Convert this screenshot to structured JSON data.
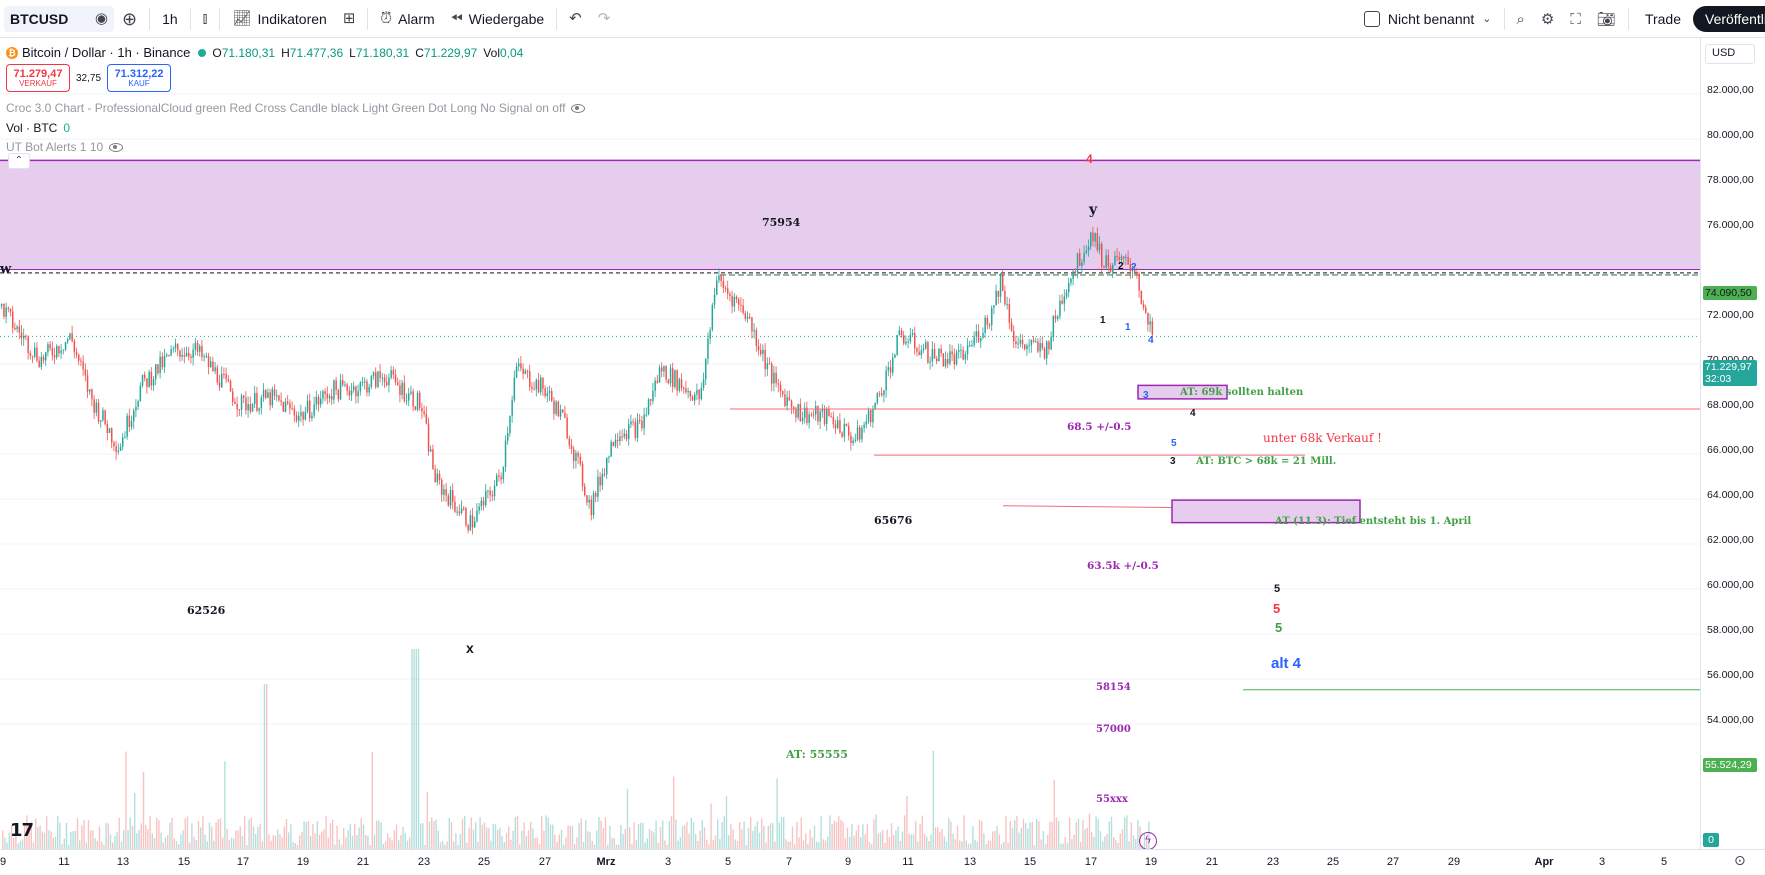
{
  "toolbar": {
    "symbol": "BTCUSD",
    "interval": "1h",
    "indicators_label": "Indikatoren",
    "alarm_label": "Alarm",
    "replay_label": "Wiedergabe",
    "layout_name": "Nicht benannt",
    "trade_label": "Trade",
    "publish_label": "Veröffentli",
    "icons": [
      "search-icon",
      "plus-circle-icon",
      "candle-type-icon",
      "indicators-icon",
      "templates-icon",
      "alarm-clock-icon",
      "replay-icon",
      "undo-icon",
      "redo-icon",
      "quick-search-icon",
      "settings-gear-icon",
      "fullscreen-icon",
      "camera-icon"
    ]
  },
  "legend": {
    "title": "Bitcoin / Dollar · 1h · Binance",
    "open_label": "O",
    "open": "71.180,31",
    "high_label": "H",
    "high": "71.477,36",
    "low_label": "L",
    "low": "71.180,31",
    "close_label": "C",
    "close": "71.229,97",
    "vol_label": "Vol",
    "vol": "0,04",
    "sell_price": "71.279,47",
    "sell_label": "VERKAUF",
    "spread": "32,75",
    "buy_price": "71.312,22",
    "buy_label": "KAUF",
    "indicator_croc": "Croc 3.0 Chart - ProfessionalCloud green Red Cross Candle black Light Green Dot Long No Signal on off",
    "indicator_vol_name": "Vol · BTC",
    "indicator_vol_value": "0",
    "indicator_ut": "UT Bot Alerts 1 10"
  },
  "price_axis": {
    "currency": "USD",
    "ticks": [
      "82.000,00",
      "80.000,00",
      "78.000,00",
      "76.000,00",
      "72.000,00",
      "70.000,00",
      "68.000,00",
      "66.000,00",
      "64.000,00",
      "62.000,00",
      "60.000,00",
      "58.000,00",
      "56.000,00",
      "54.000,00"
    ],
    "tag_line": "74.090,50",
    "tag_current": "71.229,97",
    "tag_countdown": "32:03",
    "tag_green": "55.524,29",
    "tag_volume": "0"
  },
  "time_axis": {
    "labels": [
      "9",
      "11",
      "13",
      "15",
      "17",
      "19",
      "21",
      "23",
      "25",
      "27",
      "Mrz",
      "3",
      "5",
      "7",
      "9",
      "11",
      "13",
      "15",
      "17",
      "19",
      "21",
      "23",
      "25",
      "27",
      "29",
      "Apr",
      "3",
      "5"
    ]
  },
  "annotations": {
    "a_75954": "75954",
    "a_62526": "62526",
    "a_65676": "65676",
    "a_x": "x",
    "a_y": "y",
    "a_w": "w",
    "a_red4": "4",
    "a_black2": "2",
    "a_blue2": "2",
    "a_black1": "1",
    "a_blue1": "1",
    "a_blue4": "4",
    "a_blue3": "3",
    "a_black4": "4",
    "a_blue5": "5",
    "a_black3": "3",
    "at_69k": "AT: 69k sollten halten",
    "zone_685": "68.5 +/-0.5",
    "unter_68k": "unter 68k Verkauf !",
    "at_btc": "AT: BTC > 68k = 21 Mill.",
    "at_tief": "AT (11.3): Tief entsteht bis 1. April",
    "zone_635": "63.5k +/-0.5",
    "five_black": "5",
    "five_red": "5",
    "five_green": "5",
    "alt4": "alt 4",
    "n58154": "58154",
    "n57000": "57000",
    "at_55555": "AT: 55555",
    "n55xxx": "55xxx"
  },
  "colors": {
    "up": "#26a69a",
    "down": "#ef5350",
    "zone_fill": "#e6cdee",
    "zone_border": "#9c27b0",
    "red_line": "#f06d7a",
    "green_line": "#4caf50",
    "blue_text": "#2962ff",
    "purple_text": "#9c27b0",
    "green_text": "#43a047"
  }
}
